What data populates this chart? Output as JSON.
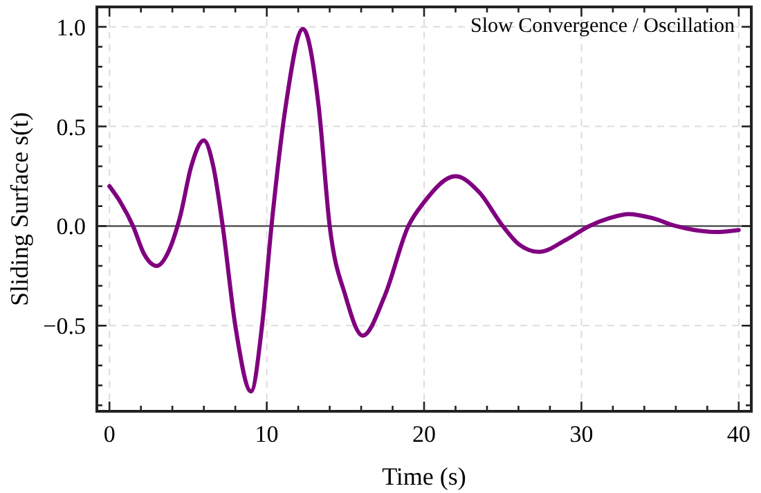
{
  "chart_data": {
    "type": "line",
    "xlabel": "Time (s)",
    "ylabel": "Sliding Surface s(t)",
    "annotations": [
      "Slow Convergence / Oscillation"
    ],
    "xlim": [
      -0.8,
      40.8
    ],
    "ylim": [
      -0.93,
      1.1
    ],
    "xticks": [
      0,
      {
        "value": 2,
        "label": null
      },
      {
        "value": 4,
        "label": null
      },
      {
        "value": 6,
        "label": null
      },
      {
        "value": 8,
        "label": null
      },
      10,
      {
        "value": 12,
        "label": null
      },
      {
        "value": 14,
        "label": null
      },
      {
        "value": 16,
        "label": null
      },
      {
        "value": 18,
        "label": null
      },
      20,
      {
        "value": 22,
        "label": null
      },
      {
        "value": 24,
        "label": null
      },
      {
        "value": 26,
        "label": null
      },
      {
        "value": 28,
        "label": null
      },
      30,
      {
        "value": 32,
        "label": null
      },
      {
        "value": 34,
        "label": null
      },
      {
        "value": 36,
        "label": null
      },
      {
        "value": 38,
        "label": null
      },
      40
    ],
    "yticks": [
      {
        "value": -0.9,
        "label": null
      },
      {
        "value": -0.8,
        "label": null
      },
      {
        "value": -0.7,
        "label": null
      },
      {
        "value": -0.6,
        "label": null
      },
      {
        "value": -0.5,
        "label": "−0.5"
      },
      {
        "value": -0.4,
        "label": null
      },
      {
        "value": -0.3,
        "label": null
      },
      {
        "value": -0.2,
        "label": null
      },
      {
        "value": -0.1,
        "label": null
      },
      {
        "value": 0,
        "label": "0.0"
      },
      {
        "value": 0.1,
        "label": null
      },
      {
        "value": 0.2,
        "label": null
      },
      {
        "value": 0.3,
        "label": null
      },
      {
        "value": 0.4,
        "label": null
      },
      {
        "value": 0.5,
        "label": "0.5"
      },
      {
        "value": 0.6,
        "label": null
      },
      {
        "value": 0.7,
        "label": null
      },
      {
        "value": 0.8,
        "label": null
      },
      {
        "value": 0.9,
        "label": null
      },
      {
        "value": 1.0,
        "label": "1.0"
      }
    ],
    "grid": true,
    "ref_lines": [
      {
        "axis": "y",
        "value": 0,
        "color": "#555555",
        "line_style": "solid"
      }
    ],
    "series": [
      {
        "color": "#800080",
        "x": [
          0,
          0.7,
          1.5,
          2.2,
          3,
          3.8,
          4.5,
          5.2,
          6,
          6.6,
          7.2,
          8,
          9,
          9.7,
          10.3,
          11.2,
          12.3,
          13.3,
          14,
          15,
          16.1,
          17.5,
          19,
          20,
          22,
          23.5,
          25,
          26,
          27.3,
          29,
          30.5,
          31.8,
          33,
          34.5,
          36,
          37.2,
          38.5,
          40
        ],
        "values": [
          0.2,
          0.12,
          0,
          -0.14,
          -0.2,
          -0.12,
          0.05,
          0.3,
          0.43,
          0.3,
          0,
          -0.5,
          -0.83,
          -0.5,
          0,
          0.6,
          0.99,
          0.6,
          0,
          -0.35,
          -0.55,
          -0.35,
          0,
          0.12,
          0.25,
          0.17,
          0,
          -0.09,
          -0.13,
          -0.07,
          0,
          0.04,
          0.06,
          0.04,
          0,
          -0.02,
          -0.03,
          -0.02
        ]
      }
    ]
  }
}
